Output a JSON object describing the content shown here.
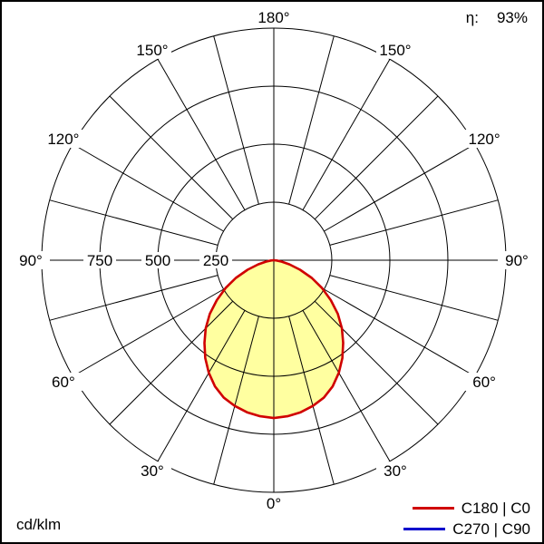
{
  "header": {
    "efficiency_label": "η:",
    "efficiency_value": "93%"
  },
  "footer": {
    "unit_label": "cd/klm"
  },
  "legend": {
    "items": [
      {
        "label": "C180 | C0",
        "color": "#d00000"
      },
      {
        "label": "C270 | C90",
        "color": "#0000cc"
      }
    ]
  },
  "plot": {
    "angle_labels": [
      {
        "text": "180°",
        "angle": 180,
        "side": 0
      },
      {
        "text": "150°",
        "angle": 150,
        "side": -1
      },
      {
        "text": "150°",
        "angle": 150,
        "side": 1
      },
      {
        "text": "120°",
        "angle": 120,
        "side": -1
      },
      {
        "text": "120°",
        "angle": 120,
        "side": 1
      },
      {
        "text": "90°",
        "angle": 90,
        "side": -1
      },
      {
        "text": "90°",
        "angle": 90,
        "side": 1
      },
      {
        "text": "60°",
        "angle": 60,
        "side": -1
      },
      {
        "text": "60°",
        "angle": 60,
        "side": 1
      },
      {
        "text": "30°",
        "angle": 30,
        "side": -1
      },
      {
        "text": "30°",
        "angle": 30,
        "side": 1
      },
      {
        "text": "0°",
        "angle": 0,
        "side": 0
      }
    ],
    "ring_labels": [
      {
        "text": "750",
        "value": 750
      },
      {
        "text": "500",
        "value": 500
      },
      {
        "text": "250",
        "value": 250
      }
    ]
  },
  "chart_data": {
    "type": "polar",
    "unit": "cd/klm",
    "efficiency_percent": 93,
    "angle_step_deg": 15,
    "ring_values": [
      250,
      500,
      750,
      1000
    ],
    "max_radius_value": 1000,
    "fill_color": "#ffffa0",
    "series": [
      {
        "name": "C180 | C0",
        "color": "#d00000",
        "symmetric": true,
        "angles_deg": [
          0,
          5,
          10,
          15,
          20,
          25,
          30,
          35,
          40,
          45,
          50,
          55,
          60,
          65,
          70,
          75,
          80,
          85,
          90
        ],
        "values_cd_per_klm": [
          680,
          675,
          665,
          650,
          630,
          600,
          560,
          515,
          465,
          415,
          360,
          300,
          240,
          180,
          120,
          70,
          35,
          12,
          0
        ]
      },
      {
        "name": "C270 | C90",
        "color": "#0000cc",
        "visible_distinct": false,
        "angles_deg": [],
        "values_cd_per_klm": []
      }
    ]
  }
}
